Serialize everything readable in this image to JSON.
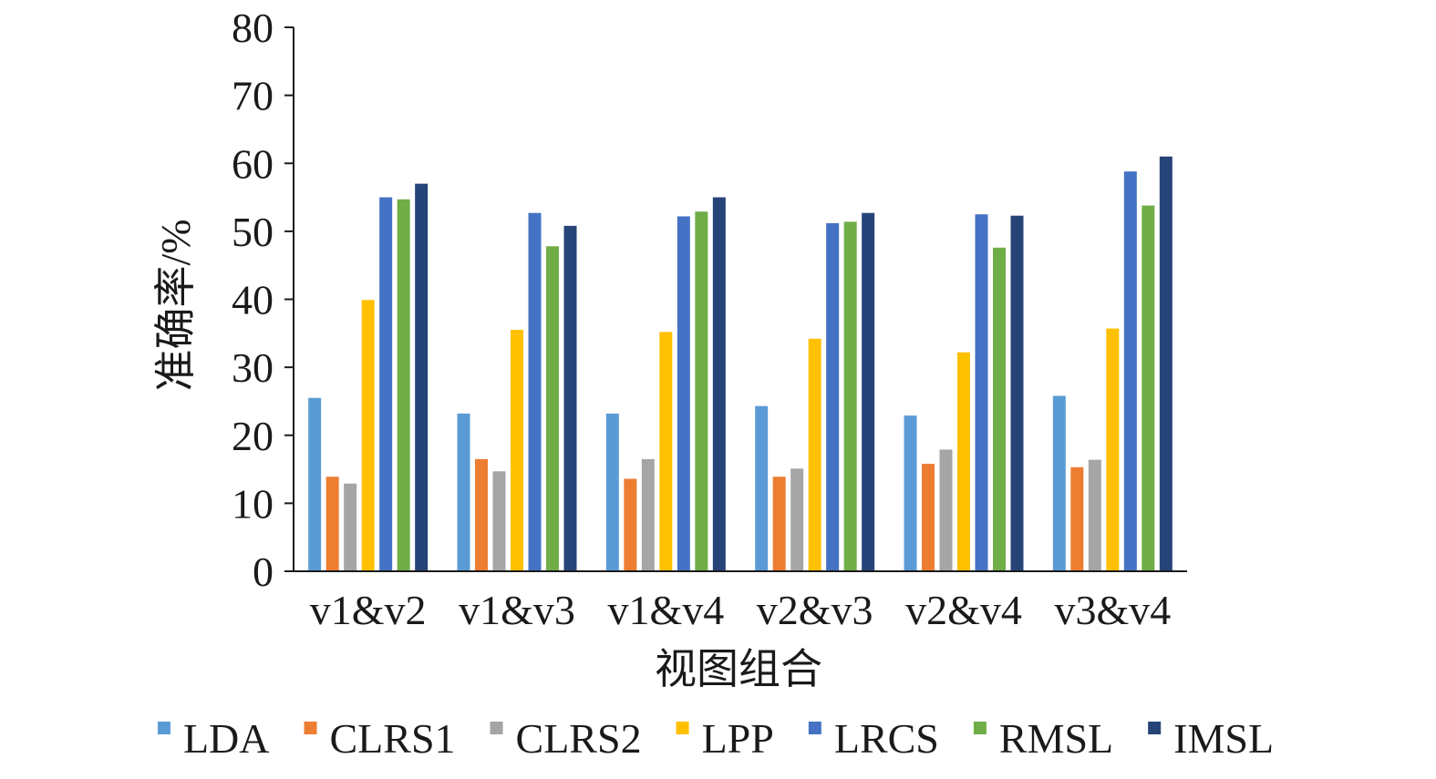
{
  "chart_data": {
    "type": "bar",
    "title": "",
    "xlabel": "视图组合",
    "ylabel": "准确率/%",
    "ylim": [
      0,
      80
    ],
    "yticks": [
      0,
      10,
      20,
      30,
      40,
      50,
      60,
      70,
      80
    ],
    "grid": false,
    "legend_position": "bottom",
    "categories": [
      "v1&v2",
      "v1&v3",
      "v1&v4",
      "v2&v3",
      "v2&v4",
      "v3&v4"
    ],
    "series": [
      {
        "name": "LDA",
        "color": "#5b9bd5",
        "values": [
          25.5,
          23.2,
          23.2,
          24.3,
          22.9,
          25.8
        ]
      },
      {
        "name": "CLRS1",
        "color": "#ed7d31",
        "values": [
          13.9,
          16.5,
          13.6,
          13.9,
          15.8,
          15.3
        ]
      },
      {
        "name": "CLRS2",
        "color": "#a5a5a5",
        "values": [
          12.9,
          14.7,
          16.5,
          15.1,
          17.9,
          16.4
        ]
      },
      {
        "name": "LPP",
        "color": "#ffc000",
        "values": [
          39.9,
          35.5,
          35.2,
          34.2,
          32.2,
          35.7
        ]
      },
      {
        "name": "LRCS",
        "color": "#4472c4",
        "values": [
          55.0,
          52.7,
          52.2,
          51.2,
          52.5,
          58.8
        ]
      },
      {
        "name": "RMSL",
        "color": "#70ad47",
        "values": [
          54.7,
          47.8,
          52.9,
          51.4,
          47.6,
          53.8
        ]
      },
      {
        "name": "IMSL",
        "color": "#264478",
        "values": [
          57.0,
          50.8,
          55.0,
          52.7,
          52.3,
          61.0
        ]
      }
    ]
  }
}
